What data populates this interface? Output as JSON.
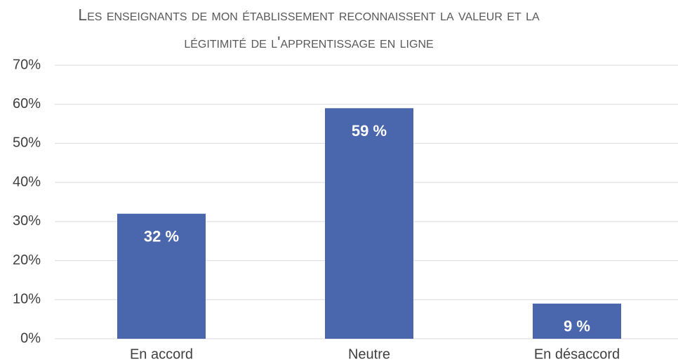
{
  "chart_data": {
    "type": "bar",
    "title": "Les enseignants de mon établissement reconnaissent la valeur et la légitimité de l'apprentissage en ligne",
    "categories": [
      "En accord",
      "Neutre",
      "En désaccord"
    ],
    "values": [
      32,
      59,
      9
    ],
    "value_labels": [
      "32 %",
      "59 %",
      "9 %"
    ],
    "color": "#4a66ac",
    "ylim": [
      0,
      70
    ],
    "yticks": [
      {
        "value": 0,
        "label": "0%"
      },
      {
        "value": 10,
        "label": "10%"
      },
      {
        "value": 20,
        "label": "20%"
      },
      {
        "value": 30,
        "label": "30%"
      },
      {
        "value": 40,
        "label": "40%"
      },
      {
        "value": 50,
        "label": "50%"
      },
      {
        "value": 60,
        "label": "60%"
      },
      {
        "value": 70,
        "label": "70%"
      }
    ],
    "grid": true
  }
}
